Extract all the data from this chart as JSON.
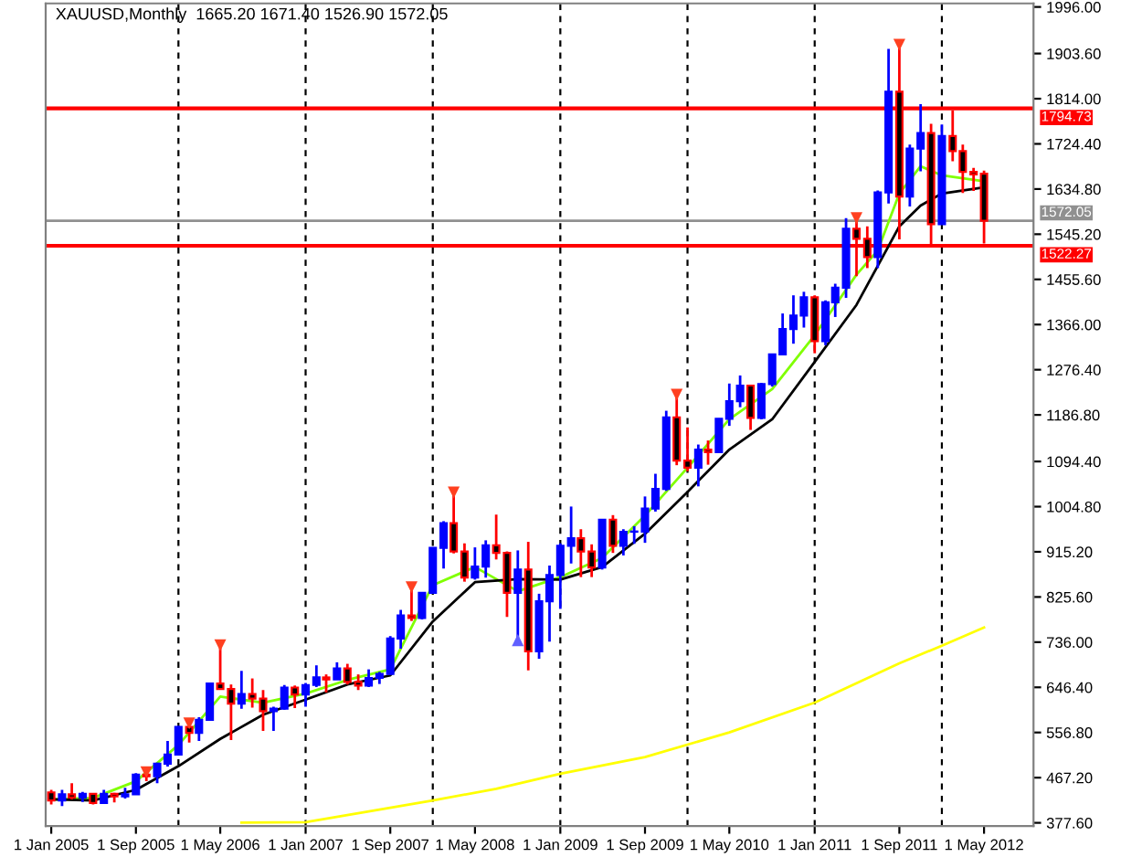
{
  "chart_data": {
    "type": "candlestick",
    "title": "XAUUSD,Monthly  1665.20 1671.40 1526.90 1572.05",
    "x": [
      "2005-01",
      "2005-02",
      "2005-03",
      "2005-04",
      "2005-05",
      "2005-06",
      "2005-07",
      "2005-08",
      "2005-09",
      "2005-10",
      "2005-11",
      "2005-12",
      "2006-01",
      "2006-02",
      "2006-03",
      "2006-04",
      "2006-05",
      "2006-06",
      "2006-07",
      "2006-08",
      "2006-09",
      "2006-10",
      "2006-11",
      "2006-12",
      "2007-01",
      "2007-02",
      "2007-03",
      "2007-04",
      "2007-05",
      "2007-06",
      "2007-07",
      "2007-08",
      "2007-09",
      "2007-10",
      "2007-11",
      "2007-12",
      "2008-01",
      "2008-02",
      "2008-03",
      "2008-04",
      "2008-05",
      "2008-06",
      "2008-07",
      "2008-08",
      "2008-09",
      "2008-10",
      "2008-11",
      "2008-12",
      "2009-01",
      "2009-02",
      "2009-03",
      "2009-04",
      "2009-05",
      "2009-06",
      "2009-07",
      "2009-08",
      "2009-09",
      "2009-10",
      "2009-11",
      "2009-12",
      "2010-01",
      "2010-02",
      "2010-03",
      "2010-04",
      "2010-05",
      "2010-06",
      "2010-07",
      "2010-08",
      "2010-09",
      "2010-10",
      "2010-11",
      "2010-12",
      "2011-01",
      "2011-02",
      "2011-03",
      "2011-04",
      "2011-05",
      "2011-06",
      "2011-07",
      "2011-08",
      "2011-09",
      "2011-10",
      "2011-11",
      "2011-12",
      "2012-01",
      "2012-02",
      "2012-03",
      "2012-04",
      "2012-05"
    ],
    "ohlc": [
      [
        438,
        443,
        414,
        422
      ],
      [
        422,
        443,
        411,
        434
      ],
      [
        434,
        456,
        424,
        428
      ],
      [
        428,
        439,
        419,
        435
      ],
      [
        435,
        435,
        414,
        417
      ],
      [
        417,
        443,
        415,
        435
      ],
      [
        435,
        437,
        418,
        430
      ],
      [
        430,
        447,
        426,
        434
      ],
      [
        434,
        476,
        434,
        473
      ],
      [
        473,
        478,
        460,
        470
      ],
      [
        470,
        497,
        456,
        495
      ],
      [
        495,
        540,
        489,
        513
      ],
      [
        513,
        570,
        513,
        568
      ],
      [
        568,
        575,
        537,
        556
      ],
      [
        556,
        587,
        540,
        582
      ],
      [
        582,
        655,
        580,
        654
      ],
      [
        654,
        730,
        642,
        643
      ],
      [
        643,
        652,
        542,
        614
      ],
      [
        614,
        679,
        604,
        633
      ],
      [
        633,
        664,
        606,
        624
      ],
      [
        624,
        641,
        560,
        599
      ],
      [
        599,
        608,
        560,
        604
      ],
      [
        604,
        651,
        602,
        646
      ],
      [
        646,
        650,
        605,
        632
      ],
      [
        632,
        655,
        608,
        651
      ],
      [
        651,
        690,
        647,
        666
      ],
      [
        666,
        672,
        636,
        662
      ],
      [
        662,
        696,
        662,
        684
      ],
      [
        684,
        693,
        652,
        657
      ],
      [
        657,
        672,
        641,
        650
      ],
      [
        650,
        682,
        647,
        665
      ],
      [
        665,
        677,
        653,
        673
      ],
      [
        673,
        748,
        671,
        743
      ],
      [
        743,
        800,
        723,
        789
      ],
      [
        789,
        845,
        778,
        784
      ],
      [
        784,
        834,
        781,
        834
      ],
      [
        834,
        924,
        833,
        923
      ],
      [
        923,
        976,
        882,
        972
      ],
      [
        972,
        1033,
        912,
        916
      ],
      [
        916,
        932,
        856,
        864
      ],
      [
        864,
        924,
        860,
        886
      ],
      [
        886,
        938,
        864,
        928
      ],
      [
        928,
        989,
        900,
        913
      ],
      [
        913,
        916,
        786,
        834
      ],
      [
        834,
        918,
        740,
        880
      ],
      [
        880,
        935,
        680,
        718
      ],
      [
        718,
        832,
        703,
        817
      ],
      [
        817,
        888,
        737,
        869
      ],
      [
        869,
        932,
        802,
        927
      ],
      [
        927,
        1005,
        892,
        942
      ],
      [
        942,
        960,
        865,
        916
      ],
      [
        916,
        930,
        865,
        884
      ],
      [
        884,
        980,
        880,
        979
      ],
      [
        979,
        988,
        913,
        927
      ],
      [
        927,
        960,
        908,
        955
      ],
      [
        955,
        966,
        931,
        955
      ],
      [
        955,
        1025,
        933,
        1001
      ],
      [
        1001,
        1070,
        995,
        1040
      ],
      [
        1040,
        1195,
        1036,
        1182
      ],
      [
        1182,
        1227,
        1087,
        1096
      ],
      [
        1096,
        1162,
        1075,
        1082
      ],
      [
        1082,
        1128,
        1045,
        1118
      ],
      [
        1118,
        1136,
        1088,
        1113
      ],
      [
        1113,
        1180,
        1111,
        1179
      ],
      [
        1179,
        1249,
        1165,
        1214
      ],
      [
        1214,
        1265,
        1202,
        1245
      ],
      [
        1245,
        1246,
        1157,
        1181
      ],
      [
        1181,
        1250,
        1178,
        1248
      ],
      [
        1248,
        1308,
        1243,
        1307
      ],
      [
        1307,
        1388,
        1305,
        1357
      ],
      [
        1357,
        1424,
        1328,
        1384
      ],
      [
        1384,
        1431,
        1360,
        1420
      ],
      [
        1420,
        1424,
        1309,
        1333
      ],
      [
        1333,
        1414,
        1325,
        1410
      ],
      [
        1410,
        1447,
        1381,
        1439
      ],
      [
        1439,
        1577,
        1419,
        1556
      ],
      [
        1556,
        1577,
        1462,
        1536
      ],
      [
        1536,
        1561,
        1478,
        1500
      ],
      [
        1500,
        1632,
        1478,
        1628
      ],
      [
        1628,
        1913,
        1606,
        1828
      ],
      [
        1828,
        1921,
        1535,
        1620
      ],
      [
        1620,
        1723,
        1600,
        1715
      ],
      [
        1715,
        1803,
        1670,
        1746
      ],
      [
        1746,
        1764,
        1523,
        1565
      ],
      [
        1565,
        1763,
        1565,
        1740
      ],
      [
        1740,
        1791,
        1690,
        1710
      ],
      [
        1710,
        1723,
        1627,
        1669
      ],
      [
        1669,
        1677,
        1631,
        1664
      ],
      [
        1665.2,
        1671.4,
        1526.9,
        1572.05
      ]
    ],
    "colors": [
      "#000000",
      "#0000ff",
      "#000000",
      "#0000ff",
      "#000000",
      "#0000ff",
      "#000000",
      "#0000ff",
      "#0000ff",
      "#000000",
      "#0000ff",
      "#0000ff",
      "#0000ff",
      "#000000",
      "#0000ff",
      "#0000ff",
      "#000000",
      "#000000",
      "#0000ff",
      "#000000",
      "#000000",
      "#0000ff",
      "#0000ff",
      "#000000",
      "#0000ff",
      "#0000ff",
      "#000000",
      "#0000ff",
      "#000000",
      "#000000",
      "#0000ff",
      "#0000ff",
      "#0000ff",
      "#0000ff",
      "#000000",
      "#0000ff",
      "#0000ff",
      "#0000ff",
      "#000000",
      "#000000",
      "#0000ff",
      "#0000ff",
      "#000000",
      "#000000",
      "#0000ff",
      "#000000",
      "#0000ff",
      "#0000ff",
      "#0000ff",
      "#0000ff",
      "#000000",
      "#000000",
      "#0000ff",
      "#000000",
      "#0000ff",
      "#0000ff",
      "#0000ff",
      "#0000ff",
      "#0000ff",
      "#000000",
      "#000000",
      "#0000ff",
      "#000000",
      "#0000ff",
      "#0000ff",
      "#0000ff",
      "#000000",
      "#0000ff",
      "#0000ff",
      "#0000ff",
      "#0000ff",
      "#0000ff",
      "#000000",
      "#0000ff",
      "#0000ff",
      "#0000ff",
      "#000000",
      "#000000",
      "#0000ff",
      "#0000ff",
      "#000000",
      "#0000ff",
      "#0000ff",
      "#000000",
      "#0000ff",
      "#000000",
      "#000000",
      "#000000",
      "#000000"
    ],
    "series": [
      {
        "type": "line",
        "color": "#80ff00",
        "x": [
          "2005-01",
          "2005-05",
          "2005-09",
          "2006-01",
          "2006-05",
          "2006-09",
          "2007-01",
          "2007-05",
          "2007-09",
          "2008-01",
          "2008-05",
          "2008-09",
          "2009-01",
          "2009-05",
          "2009-09",
          "2010-01",
          "2010-05",
          "2010-09",
          "2011-01",
          "2011-05",
          "2011-07",
          "2011-09",
          "2011-11",
          "2012-01",
          "2012-05"
        ],
        "values": [
          424,
          427,
          460,
          532,
          628,
          616,
          634,
          661,
          682,
          849,
          885,
          837,
          865,
          903,
          987,
          1082,
          1178,
          1238,
          1345,
          1465,
          1513,
          1626,
          1680,
          1662,
          1650
        ]
      },
      {
        "type": "line",
        "color": "#000000",
        "x": [
          "2005-01",
          "2005-05",
          "2005-09",
          "2006-01",
          "2006-05",
          "2006-09",
          "2007-01",
          "2007-05",
          "2007-09",
          "2008-01",
          "2008-05",
          "2008-09",
          "2009-01",
          "2009-05",
          "2009-09",
          "2010-01",
          "2010-05",
          "2010-09",
          "2011-01",
          "2011-05",
          "2011-09",
          "2011-11",
          "2012-01",
          "2012-05"
        ],
        "values": [
          424,
          422,
          443,
          490,
          544,
          592,
          622,
          652,
          670,
          777,
          855,
          861,
          860,
          885,
          951,
          1034,
          1118,
          1178,
          1292,
          1405,
          1561,
          1602,
          1626,
          1638
        ]
      },
      {
        "type": "line",
        "color": "#ffff00",
        "x": [
          "2006-07",
          "2007-01",
          "2007-07",
          "2008-01",
          "2008-07",
          "2009-01",
          "2009-09",
          "2010-05",
          "2011-01",
          "2011-09",
          "2012-01",
          "2012-05"
        ],
        "values": [
          378,
          379,
          400,
          422,
          445,
          475,
          508,
          557,
          616,
          694,
          729,
          765
        ]
      },
      {
        "type": "scatter",
        "marker": "triangle_down",
        "color": "#ff4020",
        "x": [
          "2005-10",
          "2006-02",
          "2006-05",
          "2007-11",
          "2008-03",
          "2009-12",
          "2011-05",
          "2011-09"
        ],
        "values": [
          478,
          575,
          730,
          845,
          1033,
          1227,
          1577,
          1921
        ]
      },
      {
        "type": "scatter",
        "marker": "triangle_up",
        "color": "#6060ff",
        "x": [
          "2008-09"
        ],
        "values": [
          740
        ]
      }
    ],
    "xlim": [
      "2004-12-16",
      "2012-09-20"
    ],
    "xticks": [
      {
        "value": "2005-01-01",
        "label": "1 Jan 2005"
      },
      {
        "value": "2005-09-01",
        "label": "1 Sep 2005"
      },
      {
        "value": "2006-05-01",
        "label": "1 May 2006"
      },
      {
        "value": "2007-01-01",
        "label": "1 Jan 2007"
      },
      {
        "value": "2007-09-01",
        "label": "1 Sep 2007"
      },
      {
        "value": "2008-05-01",
        "label": "1 May 2008"
      },
      {
        "value": "2009-01-01",
        "label": "1 Jan 2009"
      },
      {
        "value": "2009-09-01",
        "label": "1 Sep 2009"
      },
      {
        "value": "2010-05-01",
        "label": "1 May 2010"
      },
      {
        "value": "2011-01-01",
        "label": "1 Jan 2011"
      },
      {
        "value": "2011-09-01",
        "label": "1 Sep 2011"
      },
      {
        "value": "2012-05-01",
        "label": "1 May 2012"
      }
    ],
    "ylim": [
      371,
      2003
    ],
    "yticks": [
      {
        "value": 377.6,
        "label": "377.60"
      },
      {
        "value": 467.2,
        "label": "467.20"
      },
      {
        "value": 556.8,
        "label": "556.80"
      },
      {
        "value": 646.4,
        "label": "646.40"
      },
      {
        "value": 736,
        "label": "736.00"
      },
      {
        "value": 825.6,
        "label": "825.60"
      },
      {
        "value": 915.2,
        "label": "915.20"
      },
      {
        "value": 1004.8,
        "label": "1004.80"
      },
      {
        "value": 1094.4,
        "label": "1094.40"
      },
      {
        "value": 1186.8,
        "label": "1186.80"
      },
      {
        "value": 1276.4,
        "label": "1276.40"
      },
      {
        "value": 1366,
        "label": "1366.00"
      },
      {
        "value": 1455.6,
        "label": "1455.60"
      },
      {
        "value": 1545.2,
        "label": "1545.20"
      },
      {
        "value": 1634.8,
        "label": "1634.80"
      },
      {
        "value": 1724.4,
        "label": "1724.40"
      },
      {
        "value": 1814,
        "label": "1814.00"
      },
      {
        "value": 1903.6,
        "label": "1903.60"
      },
      {
        "value": 1996,
        "label": "1996.00"
      }
    ],
    "ref_lines": [
      {
        "axis": "y",
        "value": 1794.73,
        "label": "1794.73",
        "color": "#ff0000",
        "line_style": "solid"
      },
      {
        "axis": "y",
        "value": 1522.27,
        "label": "1522.27",
        "color": "#ff0000",
        "line_style": "solid"
      },
      {
        "axis": "y",
        "value": 1572.05,
        "label": "1572.05",
        "color": "#909090",
        "line_style": "solid"
      },
      {
        "axis": "x",
        "value": "2006-01-01",
        "color": "#000000",
        "line_style": "dashed"
      },
      {
        "axis": "x",
        "value": "2007-01-01",
        "color": "#000000",
        "line_style": "dashed"
      },
      {
        "axis": "x",
        "value": "2008-01-01",
        "color": "#000000",
        "line_style": "dashed"
      },
      {
        "axis": "x",
        "value": "2009-01-01",
        "color": "#000000",
        "line_style": "dashed"
      },
      {
        "axis": "x",
        "value": "2010-01-01",
        "color": "#000000",
        "line_style": "dashed"
      },
      {
        "axis": "x",
        "value": "2011-01-01",
        "color": "#000000",
        "line_style": "dashed"
      },
      {
        "axis": "x",
        "value": "2012-01-01",
        "color": "#000000",
        "line_style": "dashed"
      }
    ],
    "grid": false,
    "legend": false
  }
}
